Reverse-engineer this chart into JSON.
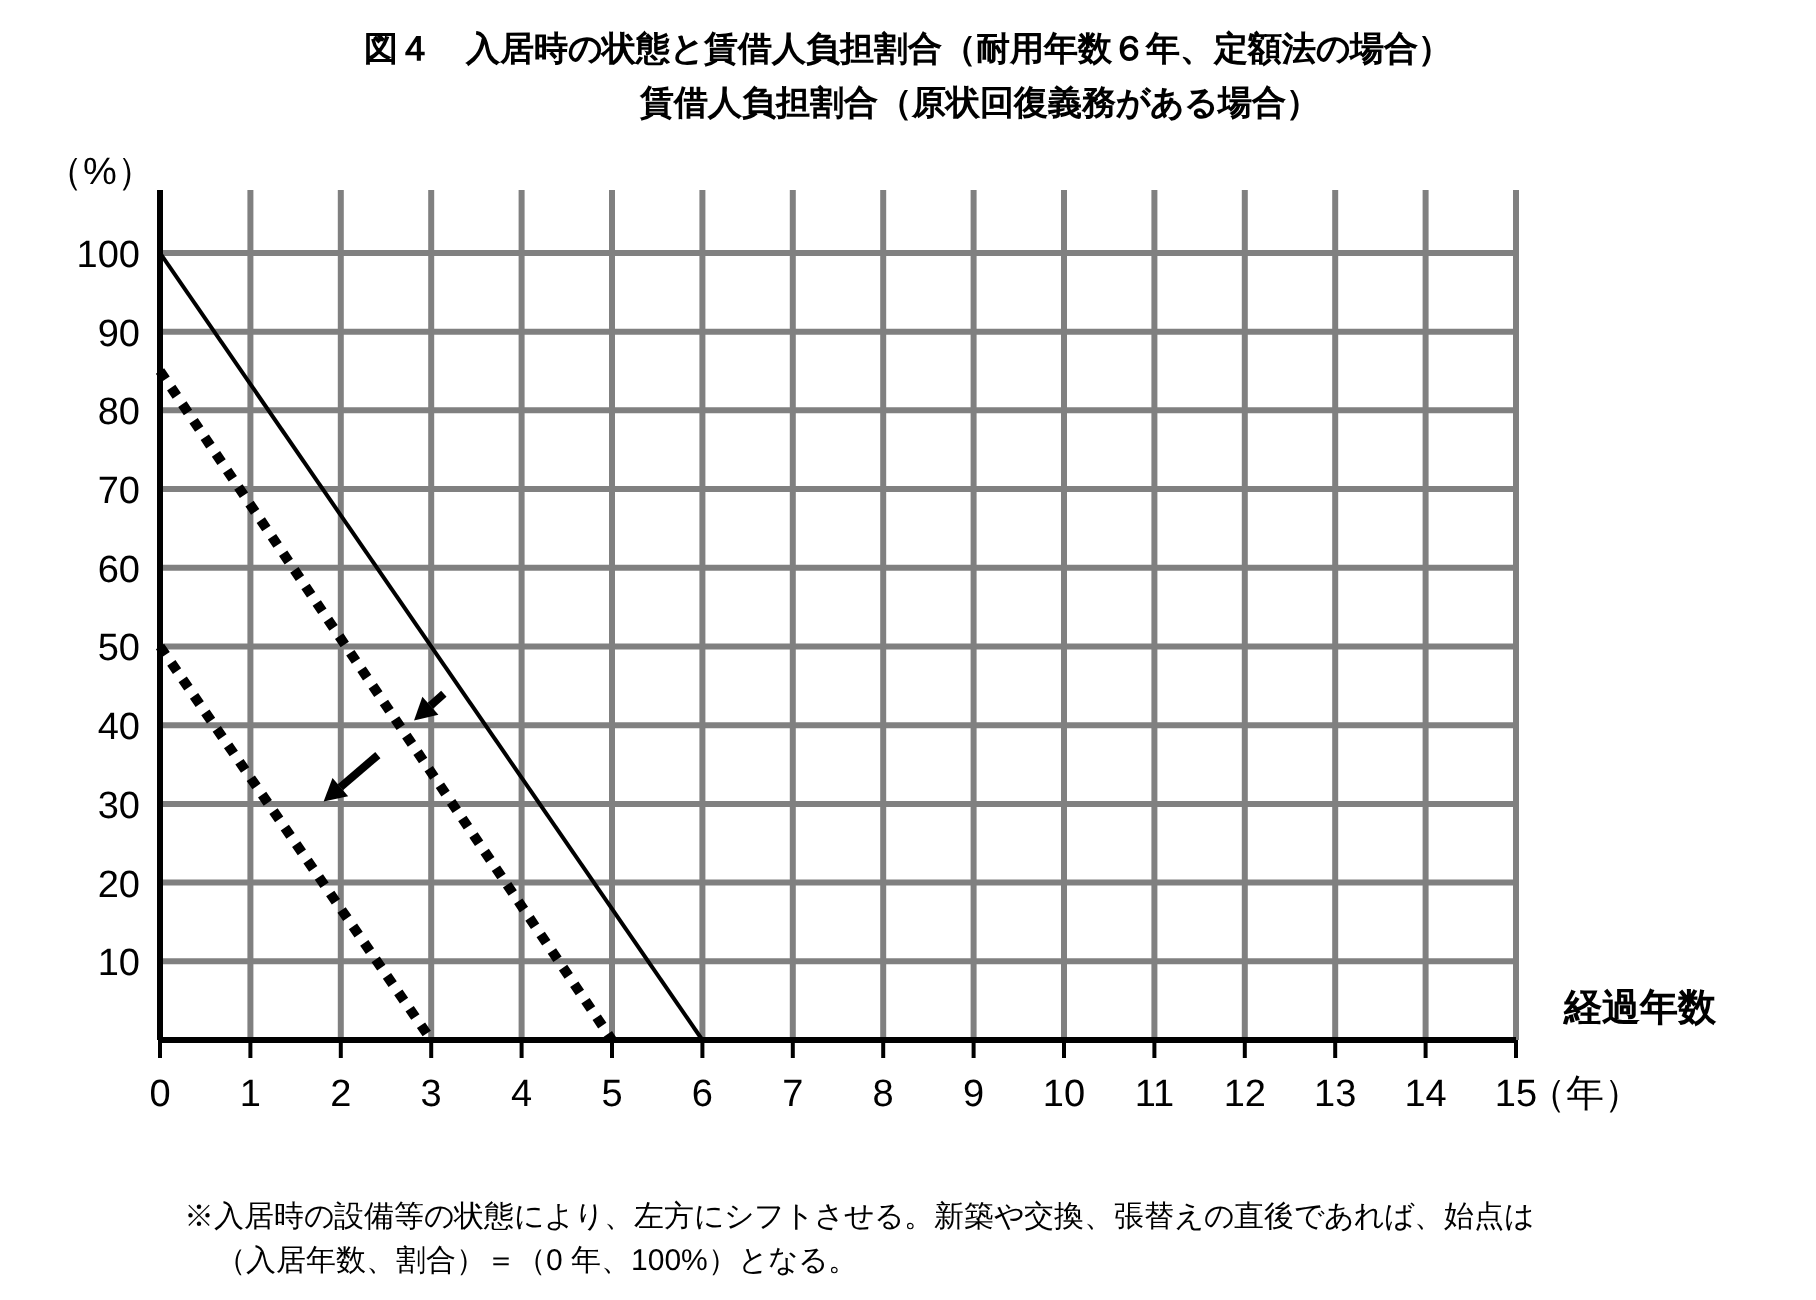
{
  "chart_data": {
    "type": "line",
    "title": "図４　入居時の状態と賃借人負担割合（耐用年数６年、定額法の場合）",
    "subtitle": "賃借人負担割合（原状回復義務がある場合）",
    "ylabel": "（%）",
    "xlabel": "経過年数",
    "annotations": [
      "（年）",
      "※入居時の設備等の状態により、左方にシフトさせる。新築や交換、張替えの直後であれば、始点は（入居年数、割合）＝（0 年、100%）となる。"
    ],
    "xlim": [
      0,
      15
    ],
    "ylim": [
      0,
      108
    ],
    "xticks": [
      0,
      1,
      2,
      3,
      4,
      5,
      6,
      7,
      8,
      9,
      10,
      11,
      12,
      13,
      14,
      15
    ],
    "yticks": [
      10,
      20,
      30,
      40,
      50,
      60,
      70,
      80,
      90,
      100
    ],
    "grid": true,
    "series": [
      {
        "color": "#000000",
        "line_style": "solid",
        "x": [
          0,
          6
        ],
        "values": [
          100,
          0
        ]
      },
      {
        "color": "#000000",
        "line_style": "dotted",
        "x": [
          0,
          5
        ],
        "values": [
          85,
          0
        ]
      },
      {
        "color": "#000000",
        "line_style": "dotted",
        "x": [
          0,
          3
        ],
        "values": [
          50,
          0
        ]
      }
    ]
  }
}
